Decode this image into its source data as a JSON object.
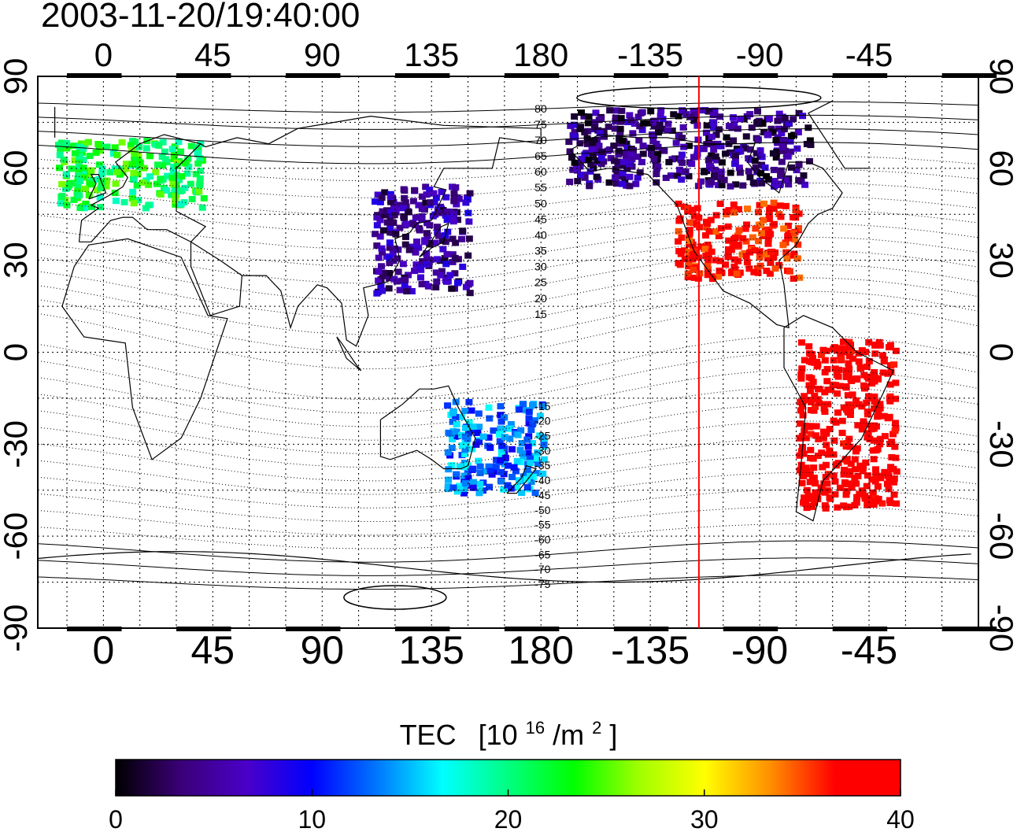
{
  "timestamp": "2003-11-20/19:40:00",
  "lon_ticks": [
    "0",
    "45",
    "90",
    "135",
    "180",
    "-135",
    "-90",
    "-45"
  ],
  "lat_ticks": [
    "90",
    "60",
    "30",
    "0",
    "-30",
    "-60",
    "-90"
  ],
  "mag_lat_labels_north": [
    "80",
    "75",
    "70",
    "65",
    "60",
    "55",
    "50",
    "45",
    "40",
    "35",
    "30",
    "25",
    "20",
    "15"
  ],
  "mag_lat_labels_south": [
    "-15",
    "-20",
    "-25",
    "-30",
    "-35",
    "-40",
    "-45",
    "-50",
    "-55",
    "-60",
    "-65",
    "-70",
    "-75"
  ],
  "colorbar": {
    "title": "TEC",
    "unit_base": "[10",
    "unit_exp1": "16",
    "unit_mid": "/m",
    "unit_exp2": "2",
    "unit_end": "]",
    "min": 0,
    "max": 40,
    "tick_labels": [
      "0",
      "10",
      "20",
      "30",
      "40"
    ]
  },
  "colors": {
    "stops": [
      "#000000",
      "#3a0078",
      "#4a00c8",
      "#0000ff",
      "#0078ff",
      "#00ffff",
      "#00ff80",
      "#00ff00",
      "#a0ff00",
      "#ffff00",
      "#ff9000",
      "#ff0000",
      "#ff0000"
    ],
    "subsolar_line": "#ff0000"
  },
  "subsolar_longitude": -115,
  "map": {
    "lon_range": [
      -27,
      360
    ],
    "lat_range": [
      -90,
      90
    ]
  },
  "tec_regions": [
    {
      "name": "north-america",
      "lon_range": [
        -125,
        -75
      ],
      "lat_range": [
        25,
        50
      ],
      "tec": 38
    },
    {
      "name": "south-america",
      "lon_range": [
        -75,
        -35
      ],
      "lat_range": [
        -50,
        5
      ],
      "tec": 40
    },
    {
      "name": "europe",
      "lon_range": [
        -20,
        40
      ],
      "lat_range": [
        48,
        70
      ],
      "tec": 22
    },
    {
      "name": "east-asia",
      "lon_range": [
        110,
        150
      ],
      "lat_range": [
        20,
        55
      ],
      "tec": 5
    },
    {
      "name": "australia",
      "lon_range": [
        140,
        180
      ],
      "lat_range": [
        -45,
        -15
      ],
      "tec": 13
    },
    {
      "name": "north-canada",
      "lon_range": [
        -170,
        -70
      ],
      "lat_range": [
        55,
        80
      ],
      "tec": 4
    }
  ]
}
